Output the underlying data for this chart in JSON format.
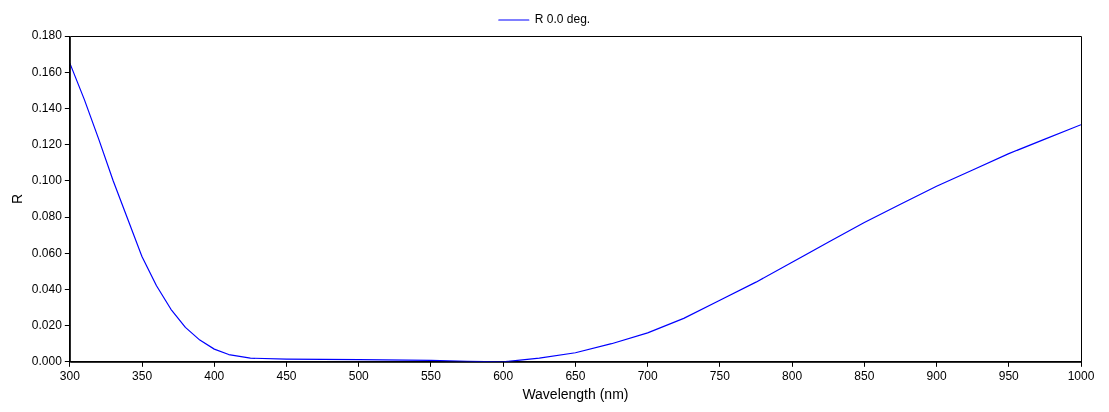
{
  "chart_data": {
    "type": "line",
    "xlabel": "Wavelength (nm)",
    "ylabel": "R",
    "x": [
      300,
      310,
      320,
      330,
      340,
      350,
      360,
      370,
      380,
      390,
      400,
      410,
      425,
      450,
      500,
      550,
      575,
      600,
      625,
      650,
      675,
      700,
      725,
      750,
      775,
      800,
      825,
      850,
      875,
      900,
      925,
      950,
      975,
      1000
    ],
    "series": [
      {
        "name": "R 0.0 deg.",
        "color": "#0000ff",
        "values": [
          0.165,
          0.145,
          0.123,
          0.1,
          0.079,
          0.058,
          0.042,
          0.029,
          0.019,
          0.012,
          0.007,
          0.004,
          0.002,
          0.0015,
          0.0012,
          0.0008,
          0.0003,
          0.0,
          0.002,
          0.005,
          0.01,
          0.016,
          0.024,
          0.034,
          0.044,
          0.055,
          0.066,
          0.077,
          0.087,
          0.097,
          0.106,
          0.115,
          0.123,
          0.131
        ]
      }
    ],
    "xlim": [
      300,
      1000
    ],
    "xticks": [
      300,
      350,
      400,
      450,
      500,
      550,
      600,
      650,
      700,
      750,
      800,
      850,
      900,
      950,
      1000
    ],
    "ylim": [
      0,
      0.18
    ],
    "yticks": [
      {
        "value": 0,
        "label": "0.000"
      },
      {
        "value": 0.02,
        "label": "0.020"
      },
      {
        "value": 0.04,
        "label": "0.040"
      },
      {
        "value": 0.06,
        "label": "0.060"
      },
      {
        "value": 0.08,
        "label": "0.080"
      },
      {
        "value": 0.1,
        "label": "0.100"
      },
      {
        "value": 0.12,
        "label": "0.120"
      },
      {
        "value": 0.14,
        "label": "0.140"
      },
      {
        "value": 0.16,
        "label": "0.160"
      },
      {
        "value": 0.18,
        "label": "0.180"
      }
    ],
    "grid": false,
    "legend": "top",
    "marker": "none",
    "line_style": "solid"
  }
}
